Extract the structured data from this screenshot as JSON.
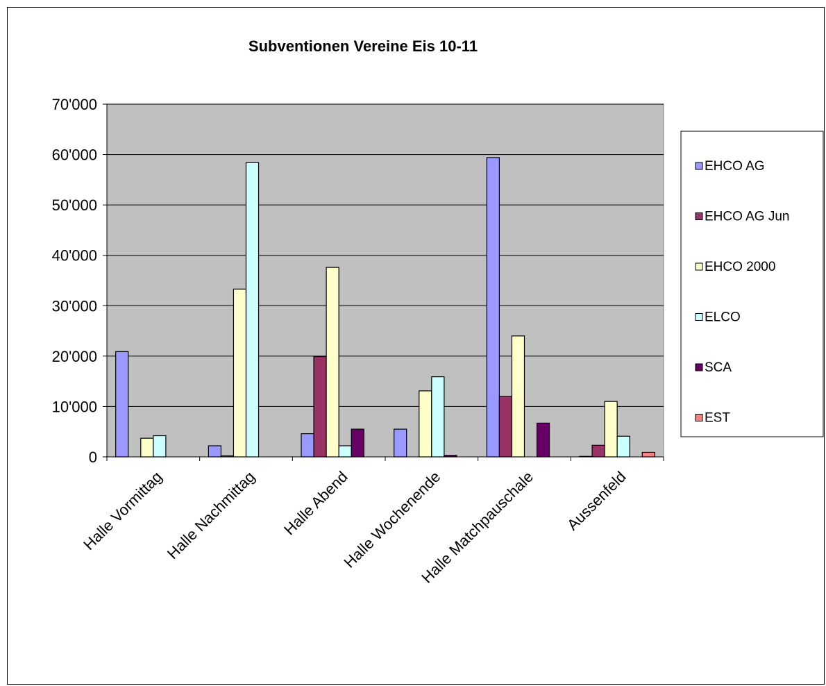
{
  "chart_data": {
    "type": "bar",
    "title": "Subventionen Vereine Eis 10-11",
    "xlabel": "",
    "ylabel": "",
    "ylim": [
      0,
      70000
    ],
    "yticks": [
      0,
      10000,
      20000,
      30000,
      40000,
      50000,
      60000,
      70000
    ],
    "ytick_labels": [
      "0",
      "10'000",
      "20'000",
      "30'000",
      "40'000",
      "50'000",
      "60'000",
      "70'000"
    ],
    "grid": true,
    "legend_position": "right",
    "plot_background": "#c0c0c0",
    "categories": [
      "Halle Vormittag",
      "Halle Nachmittag",
      "Halle Abend",
      "Halle Wochenende",
      "Halle Matchpauschale",
      "Aussenfeld"
    ],
    "series": [
      {
        "name": "EHCO AG",
        "color": "#9999ff",
        "values": [
          20900,
          2200,
          4600,
          5500,
          59400,
          100
        ]
      },
      {
        "name": "EHCO AG Jun",
        "color": "#993366",
        "values": [
          0,
          200,
          19900,
          0,
          12000,
          2300
        ]
      },
      {
        "name": "EHCO 2000",
        "color": "#ffffcc",
        "values": [
          3700,
          33300,
          37600,
          13100,
          24000,
          11000
        ]
      },
      {
        "name": "ELCO",
        "color": "#ccffff",
        "values": [
          4200,
          58400,
          2200,
          15900,
          0,
          4100
        ]
      },
      {
        "name": "SCA",
        "color": "#660066",
        "values": [
          0,
          0,
          5500,
          300,
          6700,
          0
        ]
      },
      {
        "name": "EST",
        "color": "#ff8080",
        "values": [
          0,
          0,
          0,
          0,
          0,
          900
        ]
      }
    ]
  }
}
